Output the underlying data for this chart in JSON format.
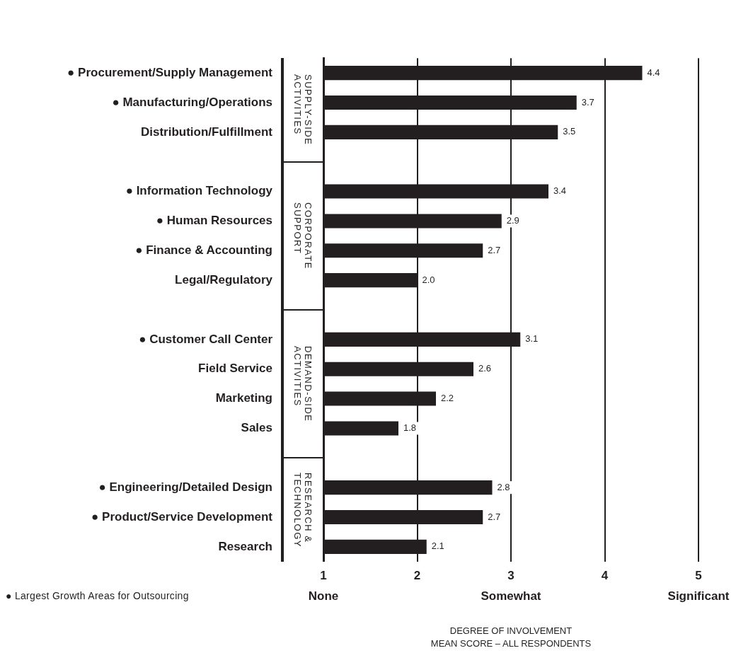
{
  "chart_data": {
    "type": "bar",
    "orientation": "horizontal",
    "categories": [
      "● Procurement/Supply Management",
      "● Manufacturing/Operations",
      "Distribution/Fulfillment",
      null,
      "● Information Technology",
      "● Human Resources",
      "● Finance & Accounting",
      "Legal/Regulatory",
      null,
      "● Customer Call Center",
      "Field Service",
      "Marketing",
      "Sales",
      null,
      "● Engineering/Detailed Design",
      "● Product/Service Development",
      "Research"
    ],
    "values": [
      4.4,
      3.7,
      3.5,
      null,
      3.4,
      2.9,
      2.7,
      2.0,
      null,
      3.1,
      2.6,
      2.2,
      1.8,
      null,
      2.8,
      2.7,
      2.1
    ],
    "value_labels": [
      "4.4",
      "3.7",
      "3.5",
      null,
      "3.4",
      "2.9",
      "2.7",
      "2.0",
      null,
      "3.1",
      "2.6",
      "2.2",
      "1.8",
      null,
      "2.8",
      "2.7",
      "2.1"
    ],
    "color": "#231f20",
    "xlim": [
      1,
      5
    ],
    "xticks": [
      {
        "value": 1,
        "label": "1\nNone"
      },
      2,
      {
        "value": 3,
        "label": "3\nSomewhat"
      },
      4,
      {
        "value": 5,
        "label": "5\nSignificant"
      }
    ],
    "xlabel": "DEGREE OF INVOLVEMENT\nMEAN SCORE – ALL RESPONDENTS",
    "annotations": [
      "SUPPLY-SIDE\nACTIVITIES",
      "CORPORATE\nSUPPORT",
      "DEMAND-SIDE\nACTIVITIES",
      "RESEARCH &\nTECHNOLOGY",
      "● Largest Growth Areas for Outsourcing"
    ],
    "grid": "x"
  }
}
